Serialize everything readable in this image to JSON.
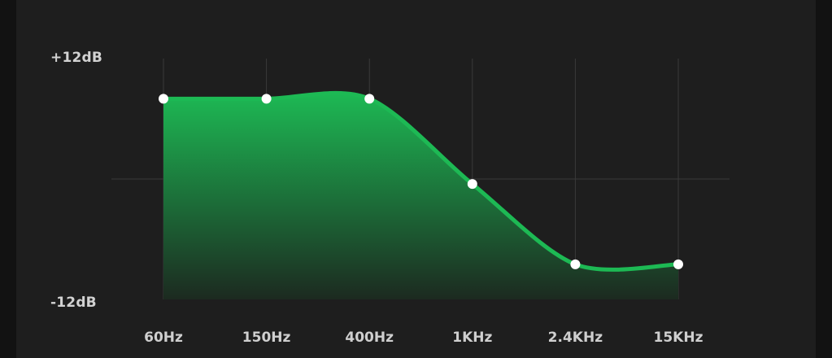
{
  "equalizer": {
    "y_max_label": "+12dB",
    "y_min_label": "-12dB",
    "bands": [
      {
        "label": "60Hz",
        "gain_db": 8
      },
      {
        "label": "150Hz",
        "gain_db": 8
      },
      {
        "label": "400Hz",
        "gain_db": 8
      },
      {
        "label": "1KHz",
        "gain_db": -0.5
      },
      {
        "label": "2.4KHz",
        "gain_db": -8.5
      },
      {
        "label": "15KHz",
        "gain_db": -8.5
      }
    ],
    "range_db": [
      -12,
      12
    ],
    "colors": {
      "accent": "#1db954",
      "fill_top": "#1db954",
      "fill_bottom": "#1b1f1c",
      "grid": "#3a3a3a",
      "handle": "#ffffff"
    }
  }
}
